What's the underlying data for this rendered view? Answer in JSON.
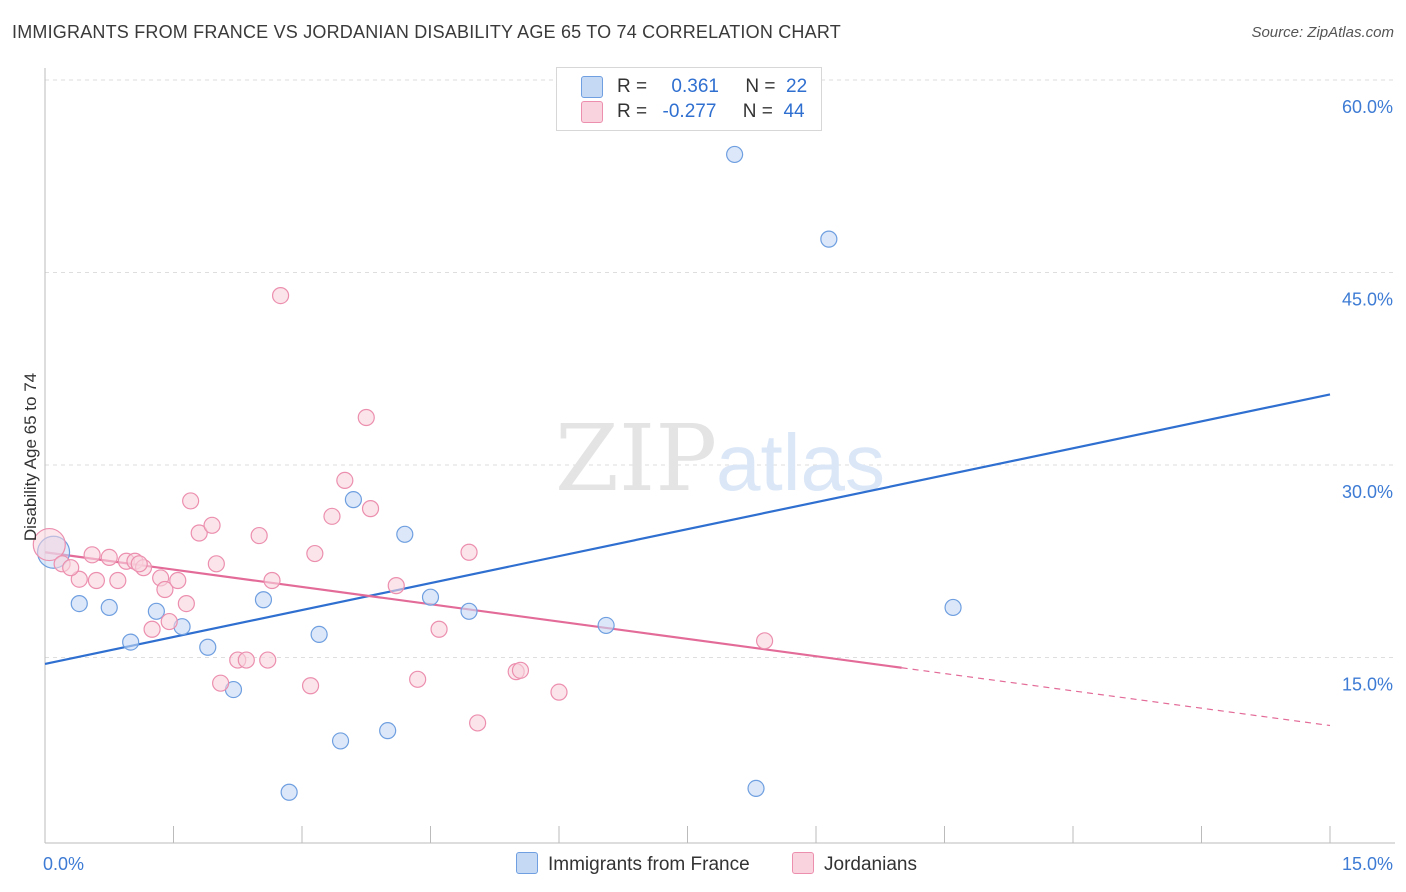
{
  "title": "IMMIGRANTS FROM FRANCE VS JORDANIAN DISABILITY AGE 65 TO 74 CORRELATION CHART",
  "source": "Source: ZipAtlas.com",
  "watermark": {
    "zip": "ZIP",
    "atlas": "atlas"
  },
  "legend": {
    "r_label": "R =",
    "n_label": "N =",
    "rows": [
      {
        "r": "0.361",
        "n": "22",
        "color": "#a8c8f0",
        "border": "#6f9fe0"
      },
      {
        "r": "-0.277",
        "n": "44",
        "color": "#f7bfd0",
        "border": "#ec8fae"
      }
    ]
  },
  "bottom_legend": [
    {
      "label": "Immigrants from France",
      "color": "#c5d9f5",
      "border": "#6f9fe0"
    },
    {
      "label": "Jordanians",
      "color": "#f9d3de",
      "border": "#ec8fae"
    }
  ],
  "chart_data": {
    "type": "scatter",
    "ylabel": "Disability Age 65 to 74",
    "xlim": [
      0,
      15
    ],
    "ylim": [
      0,
      60
    ],
    "x_tick_labels": [
      "0.0%",
      "15.0%"
    ],
    "y_tick_labels": [
      "15.0%",
      "30.0%",
      "45.0%",
      "60.0%"
    ],
    "y_ticks": [
      15,
      30,
      45,
      60
    ],
    "grid": true,
    "series": [
      {
        "name": "Immigrants from France",
        "color": "#6f9fe0",
        "fill": "#c5d9f5",
        "line_color": "#2f6fd0",
        "points": [
          [
            0.1,
            23.2
          ],
          [
            0.4,
            19.2
          ],
          [
            0.75,
            18.9
          ],
          [
            1.0,
            16.2
          ],
          [
            1.3,
            18.6
          ],
          [
            1.6,
            17.4
          ],
          [
            1.9,
            15.8
          ],
          [
            2.2,
            12.5
          ],
          [
            2.55,
            19.5
          ],
          [
            2.85,
            4.5
          ],
          [
            3.2,
            16.8
          ],
          [
            3.45,
            8.5
          ],
          [
            3.6,
            27.3
          ],
          [
            4.0,
            9.3
          ],
          [
            4.2,
            24.6
          ],
          [
            4.5,
            19.7
          ],
          [
            4.95,
            18.6
          ],
          [
            6.55,
            17.5
          ],
          [
            8.05,
            54.2
          ],
          [
            8.3,
            4.8
          ],
          [
            9.15,
            47.6
          ],
          [
            10.6,
            18.9
          ]
        ],
        "trend": {
          "x": [
            0,
            15
          ],
          "y": [
            14.5,
            35.5
          ],
          "dashed_from": null
        }
      },
      {
        "name": "Jordanians",
        "color": "#ec8fae",
        "fill": "#f9d3de",
        "line_color": "#e36b98",
        "points": [
          [
            0.05,
            23.8
          ],
          [
            0.2,
            22.3
          ],
          [
            0.4,
            21.1
          ],
          [
            0.55,
            23.0
          ],
          [
            0.6,
            21.0
          ],
          [
            0.75,
            22.8
          ],
          [
            0.85,
            21.0
          ],
          [
            0.95,
            22.5
          ],
          [
            1.05,
            22.5
          ],
          [
            1.15,
            22.0
          ],
          [
            1.25,
            17.2
          ],
          [
            1.35,
            21.2
          ],
          [
            1.4,
            20.3
          ],
          [
            1.45,
            17.8
          ],
          [
            1.55,
            21.0
          ],
          [
            1.65,
            19.2
          ],
          [
            1.7,
            27.2
          ],
          [
            1.8,
            24.7
          ],
          [
            1.95,
            25.3
          ],
          [
            2.0,
            22.3
          ],
          [
            2.05,
            13.0
          ],
          [
            2.25,
            14.8
          ],
          [
            2.35,
            14.8
          ],
          [
            2.5,
            24.5
          ],
          [
            2.6,
            14.8
          ],
          [
            2.65,
            21.0
          ],
          [
            2.75,
            43.2
          ],
          [
            3.1,
            12.8
          ],
          [
            3.15,
            23.1
          ],
          [
            3.35,
            26.0
          ],
          [
            3.5,
            28.8
          ],
          [
            3.75,
            33.7
          ],
          [
            3.8,
            26.6
          ],
          [
            4.1,
            20.6
          ],
          [
            4.35,
            13.3
          ],
          [
            4.6,
            17.2
          ],
          [
            4.95,
            23.2
          ],
          [
            5.05,
            9.9
          ],
          [
            5.5,
            13.9
          ],
          [
            5.55,
            14.0
          ],
          [
            6.0,
            12.3
          ],
          [
            8.4,
            16.3
          ],
          [
            0.3,
            22.0
          ],
          [
            1.1,
            22.3
          ]
        ],
        "trend": {
          "x": [
            0,
            15
          ],
          "y": [
            23.2,
            9.7
          ],
          "dashed_from": 10.0
        }
      }
    ]
  }
}
